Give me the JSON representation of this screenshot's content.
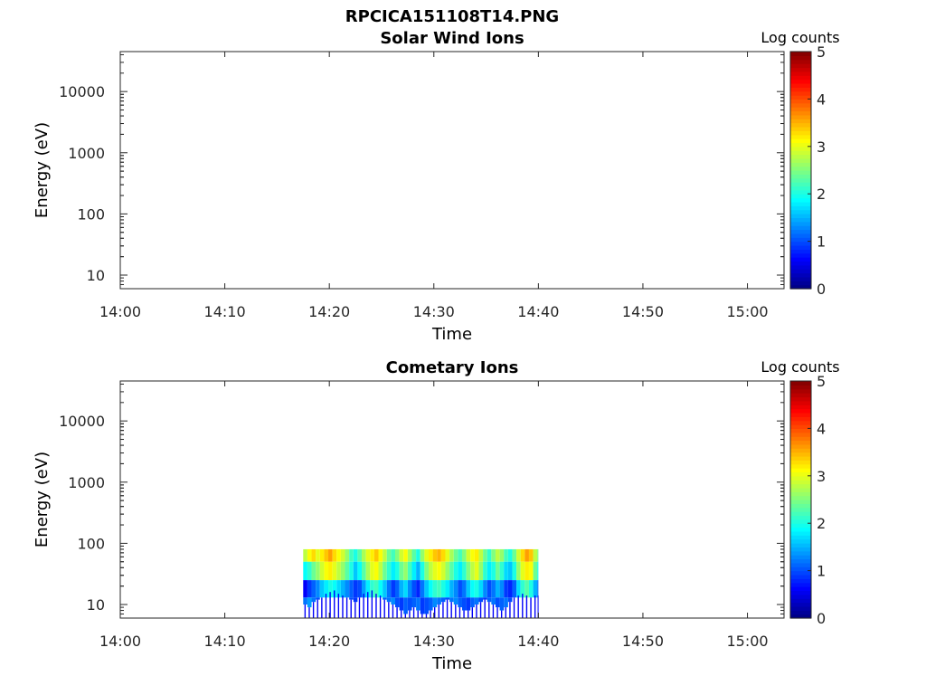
{
  "figure_title": "RPCICA151108T14.PNG",
  "chart_data": [
    {
      "type": "heatmap",
      "title": "Solar Wind Ions",
      "xlabel": "Time",
      "ylabel": "Energy (eV)",
      "y_scale": "log",
      "ylim": [
        6,
        45000
      ],
      "x_ticks": [
        "14:00",
        "14:10",
        "14:20",
        "14:30",
        "14:40",
        "14:50",
        "15:00"
      ],
      "y_ticks": [
        "10",
        "100",
        "1000",
        "10000"
      ],
      "xlim_minutes_after_1400": [
        0,
        63.5
      ],
      "colorbar": {
        "label": "Log counts",
        "range": [
          0,
          5
        ],
        "ticks": [
          "0",
          "1",
          "2",
          "3",
          "4",
          "5"
        ],
        "colormap": "jet"
      },
      "data_extent": null,
      "note_on_data": "empty"
    },
    {
      "type": "heatmap",
      "title": "Cometary Ions",
      "xlabel": "Time",
      "ylabel": "Energy (eV)",
      "y_scale": "log",
      "ylim": [
        6,
        45000
      ],
      "x_ticks": [
        "14:00",
        "14:10",
        "14:20",
        "14:30",
        "14:40",
        "14:50",
        "15:00"
      ],
      "y_ticks": [
        "10",
        "100",
        "1000",
        "10000"
      ],
      "xlim_minutes_after_1400": [
        0,
        63.5
      ],
      "colorbar": {
        "label": "Log counts",
        "range": [
          0,
          5
        ],
        "ticks": [
          "0",
          "1",
          "2",
          "3",
          "4",
          "5"
        ],
        "colormap": "jet"
      },
      "data_extent": {
        "time_start": "14:17:30",
        "time_end": "14:40:00",
        "energy_min_eV": 6,
        "energy_max_eV": 80
      },
      "blocks": [
        [
          0.0,
          2.8,
          1.9,
          0.6,
          1.2,
          10
        ],
        [
          0.4,
          3.1,
          2.1,
          0.9,
          1.4,
          9
        ],
        [
          0.8,
          3.3,
          2.4,
          1.1,
          1.2,
          11
        ],
        [
          1.2,
          3.0,
          2.6,
          1.3,
          1.0,
          12
        ],
        [
          1.6,
          3.2,
          2.9,
          1.6,
          1.2,
          13
        ],
        [
          2.0,
          3.4,
          3.1,
          1.8,
          1.1,
          15
        ],
        [
          2.4,
          3.6,
          3.2,
          2.0,
          0.9,
          16
        ],
        [
          2.8,
          3.3,
          3.0,
          1.9,
          1.0,
          17
        ],
        [
          3.2,
          3.1,
          2.8,
          1.7,
          1.1,
          15
        ],
        [
          3.6,
          2.9,
          2.6,
          1.5,
          1.3,
          14
        ],
        [
          4.0,
          2.6,
          2.3,
          1.3,
          1.2,
          13
        ],
        [
          4.4,
          2.2,
          2.0,
          1.1,
          1.0,
          12
        ],
        [
          4.8,
          2.0,
          1.6,
          0.9,
          0.9,
          11
        ],
        [
          5.2,
          2.3,
          1.9,
          1.0,
          1.0,
          13
        ],
        [
          5.6,
          2.7,
          2.3,
          1.4,
          1.2,
          15
        ],
        [
          6.0,
          3.0,
          2.7,
          1.8,
          1.1,
          16
        ],
        [
          6.4,
          3.2,
          3.0,
          2.1,
          1.2,
          17
        ],
        [
          6.8,
          3.4,
          3.1,
          2.2,
          1.0,
          15
        ],
        [
          7.2,
          3.1,
          2.8,
          1.9,
          0.9,
          14
        ],
        [
          7.6,
          2.8,
          2.4,
          1.6,
          1.1,
          12
        ],
        [
          8.0,
          2.4,
          2.1,
          1.2,
          1.2,
          11
        ],
        [
          8.4,
          2.2,
          1.8,
          0.9,
          1.3,
          10
        ],
        [
          8.8,
          2.5,
          2.0,
          1.1,
          1.0,
          9
        ],
        [
          9.2,
          2.9,
          2.4,
          1.5,
          0.9,
          8
        ],
        [
          9.6,
          3.1,
          2.6,
          1.7,
          1.1,
          7
        ],
        [
          10.0,
          2.7,
          2.2,
          1.3,
          1.0,
          8
        ],
        [
          10.4,
          2.3,
          1.8,
          1.0,
          1.1,
          9
        ],
        [
          10.8,
          2.0,
          1.5,
          0.8,
          1.2,
          8
        ],
        [
          11.2,
          2.6,
          2.0,
          1.2,
          0.9,
          7
        ],
        [
          11.6,
          3.0,
          2.5,
          1.6,
          1.0,
          7
        ],
        [
          12.0,
          3.2,
          2.8,
          1.9,
          1.1,
          8
        ],
        [
          12.4,
          3.4,
          3.0,
          2.1,
          1.3,
          9
        ],
        [
          12.8,
          3.5,
          3.1,
          2.2,
          1.2,
          10
        ],
        [
          13.2,
          3.3,
          2.9,
          2.0,
          1.1,
          11
        ],
        [
          13.6,
          3.0,
          2.6,
          1.8,
          1.0,
          12
        ],
        [
          14.0,
          2.7,
          2.3,
          1.5,
          1.2,
          11
        ],
        [
          14.4,
          2.4,
          2.0,
          1.3,
          1.3,
          10
        ],
        [
          14.8,
          2.2,
          1.8,
          1.0,
          1.1,
          9
        ],
        [
          15.2,
          2.5,
          2.1,
          1.2,
          1.0,
          8
        ],
        [
          15.6,
          2.9,
          2.5,
          1.6,
          0.9,
          8
        ],
        [
          16.0,
          3.1,
          2.8,
          1.9,
          1.1,
          9
        ],
        [
          16.4,
          3.2,
          3.0,
          2.0,
          1.2,
          10
        ],
        [
          16.8,
          2.8,
          2.6,
          1.7,
          1.0,
          11
        ],
        [
          17.2,
          2.4,
          2.1,
          1.3,
          0.9,
          12
        ],
        [
          17.6,
          2.1,
          1.8,
          1.0,
          1.1,
          11
        ],
        [
          18.0,
          2.5,
          2.0,
          1.2,
          1.2,
          10
        ],
        [
          18.4,
          2.8,
          2.4,
          1.5,
          1.0,
          9
        ],
        [
          18.8,
          2.6,
          2.1,
          1.3,
          1.1,
          8
        ],
        [
          19.2,
          2.2,
          1.7,
          0.9,
          1.2,
          9
        ],
        [
          19.6,
          2.0,
          1.6,
          0.8,
          1.0,
          11
        ],
        [
          20.0,
          2.4,
          2.0,
          1.1,
          0.9,
          13
        ],
        [
          20.4,
          2.9,
          2.6,
          1.7,
          1.0,
          14
        ],
        [
          20.8,
          3.3,
          3.0,
          2.1,
          1.2,
          15
        ],
        [
          21.2,
          3.6,
          3.2,
          2.3,
          1.3,
          14
        ],
        [
          21.6,
          3.4,
          3.1,
          2.0,
          1.1,
          13
        ],
        [
          22.0,
          2.8,
          2.4,
          1.5,
          1.0,
          14
        ],
        [
          22.4,
          2.5,
          2.0,
          1.2,
          1.0,
          14
        ]
      ]
    }
  ]
}
